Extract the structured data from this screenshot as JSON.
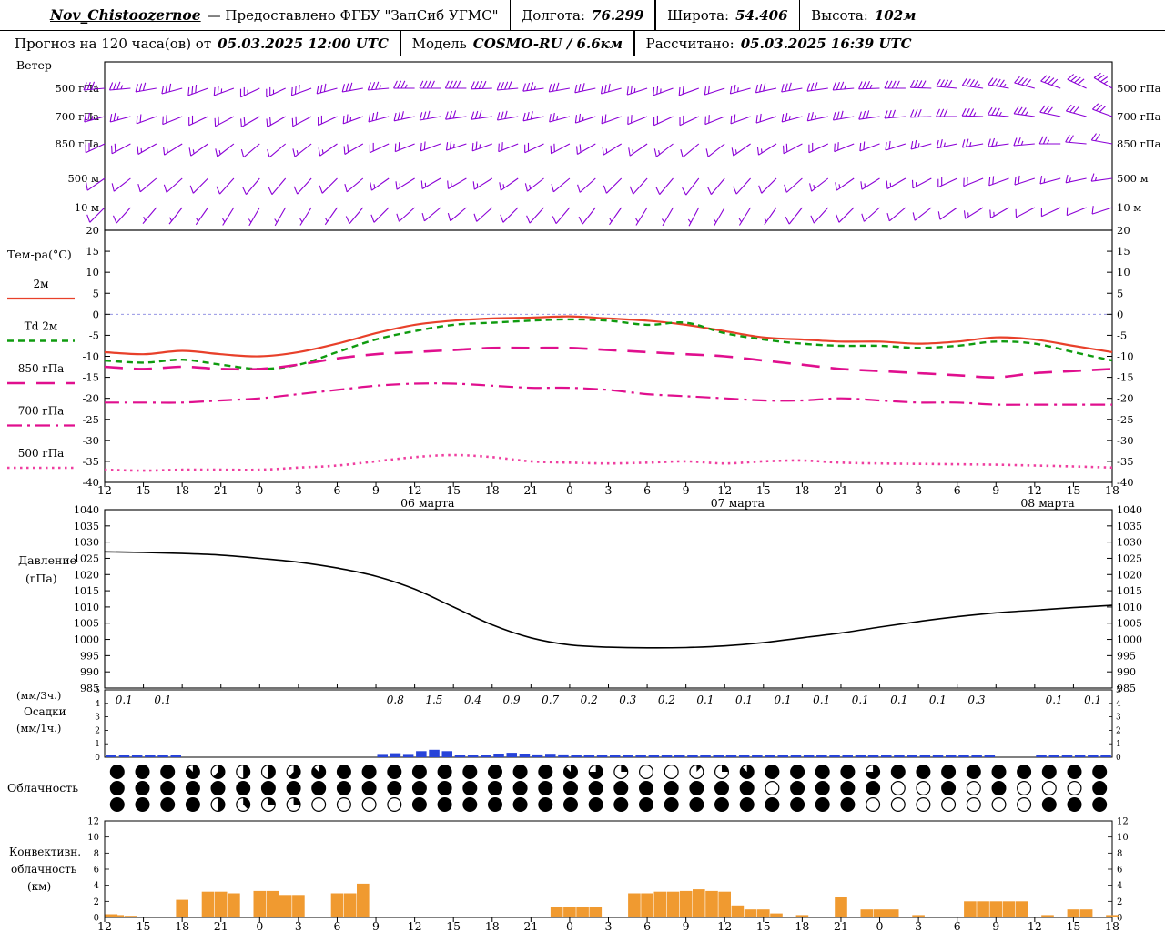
{
  "header": {
    "station": "Nov_Chistoozernoe",
    "provided_by": "— Предоставлено ФГБУ \"ЗапСиб УГМС\"",
    "lon_label": "Долгота:",
    "lon_value": "76.299",
    "lat_label": "Широта:",
    "lat_value": "54.406",
    "alt_label": "Высота:",
    "alt_value": "102м",
    "forecast_label": "Прогноз на 120 часа(ов) от",
    "forecast_time": "05.03.2025 12:00 UTC",
    "model_label": "Модель",
    "model_value": "COSMO-RU / 6.6км",
    "calc_label": "Рассчитано:",
    "calc_value": "05.03.2025 16:39 UTC"
  },
  "side_labels": {
    "wind": "Ветер",
    "temp": "Тем-ра(°C)",
    "pressure1": "Давление",
    "pressure2": "(гПа)",
    "precip1": "(мм/3ч.)",
    "precip2": "Осадки",
    "precip3": "(мм/1ч.)",
    "cloud": "Облачность",
    "conv1": "Конвективн.",
    "conv2": "облачность",
    "conv3": "(км)"
  },
  "axis": {
    "hours_total": 78,
    "hour_step": 3,
    "hour_labels": [
      "12",
      "15",
      "18",
      "21",
      "0",
      "3",
      "6",
      "9",
      "12",
      "15",
      "18",
      "21",
      "0",
      "3",
      "6",
      "9",
      "12",
      "15",
      "18",
      "21",
      "0",
      "3",
      "6",
      "9",
      "12",
      "15",
      "18"
    ],
    "date_labels": [
      {
        "text": "06 марта",
        "t": 25
      },
      {
        "text": "07 марта",
        "t": 49
      },
      {
        "text": "08 марта",
        "t": 73
      }
    ]
  },
  "chart_data": [
    {
      "id": "wind",
      "type": "wind-barbs",
      "title": "Ветер",
      "color": "#8b00d6",
      "time_step_hours": 2,
      "levels": [
        {
          "name": "500 гПа",
          "dir": [
            265,
            265,
            260,
            255,
            250,
            250,
            245,
            245,
            250,
            255,
            260,
            265,
            270,
            270,
            270,
            268,
            265,
            262,
            260,
            258,
            255,
            252,
            250,
            250,
            252,
            255,
            258,
            260,
            262,
            265,
            268,
            270,
            272,
            275,
            278,
            280,
            285,
            290,
            295,
            300
          ],
          "speed": [
            35,
            35,
            30,
            30,
            28,
            25,
            25,
            25,
            28,
            30,
            32,
            35,
            35,
            38,
            40,
            40,
            38,
            35,
            32,
            30,
            28,
            25,
            25,
            22,
            22,
            25,
            28,
            30,
            32,
            35,
            35,
            38,
            40,
            42,
            45,
            45,
            42,
            40,
            38,
            35
          ]
        },
        {
          "name": "700 гПа",
          "dir": [
            255,
            255,
            250,
            248,
            245,
            242,
            240,
            240,
            242,
            245,
            250,
            255,
            258,
            260,
            262,
            262,
            260,
            258,
            255,
            252,
            250,
            248,
            245,
            245,
            248,
            250,
            252,
            255,
            258,
            260,
            262,
            265,
            268,
            270,
            272,
            275,
            278,
            282,
            285,
            290
          ],
          "speed": [
            25,
            25,
            22,
            22,
            20,
            20,
            18,
            18,
            20,
            22,
            25,
            28,
            28,
            30,
            30,
            32,
            30,
            28,
            26,
            25,
            22,
            20,
            20,
            18,
            18,
            20,
            22,
            25,
            26,
            28,
            28,
            30,
            30,
            32,
            34,
            35,
            34,
            32,
            30,
            28
          ]
        },
        {
          "name": "850 гПа",
          "dir": [
            245,
            242,
            240,
            238,
            235,
            232,
            230,
            230,
            232,
            235,
            240,
            245,
            248,
            250,
            252,
            250,
            248,
            245,
            242,
            240,
            238,
            235,
            232,
            230,
            232,
            235,
            238,
            242,
            245,
            248,
            250,
            252,
            255,
            258,
            260,
            262,
            265,
            270,
            275,
            280
          ],
          "speed": [
            18,
            18,
            16,
            15,
            15,
            14,
            12,
            12,
            14,
            15,
            18,
            20,
            22,
            22,
            24,
            24,
            22,
            20,
            18,
            18,
            16,
            15,
            14,
            12,
            12,
            14,
            16,
            18,
            20,
            20,
            22,
            22,
            24,
            25,
            26,
            26,
            25,
            24,
            22,
            20
          ]
        },
        {
          "name": "500 м",
          "dir": [
            235,
            232,
            230,
            228,
            225,
            222,
            220,
            220,
            222,
            225,
            230,
            235,
            238,
            240,
            240,
            238,
            235,
            232,
            230,
            228,
            225,
            222,
            220,
            218,
            220,
            222,
            225,
            228,
            232,
            235,
            238,
            240,
            242,
            245,
            248,
            250,
            252,
            255,
            258,
            262
          ],
          "speed": [
            12,
            12,
            10,
            10,
            10,
            9,
            8,
            8,
            10,
            10,
            12,
            14,
            15,
            15,
            16,
            16,
            15,
            14,
            12,
            12,
            10,
            10,
            9,
            8,
            8,
            10,
            10,
            12,
            14,
            14,
            15,
            15,
            16,
            18,
            18,
            20,
            18,
            16,
            15,
            14
          ]
        },
        {
          "name": "10 м",
          "dir": [
            225,
            222,
            220,
            218,
            215,
            212,
            210,
            210,
            212,
            215,
            220,
            225,
            228,
            230,
            230,
            228,
            225,
            222,
            220,
            218,
            215,
            212,
            210,
            208,
            210,
            212,
            215,
            218,
            222,
            225,
            228,
            230,
            232,
            235,
            238,
            240,
            242,
            245,
            248,
            252
          ],
          "speed": [
            8,
            8,
            6,
            6,
            5,
            5,
            5,
            5,
            6,
            6,
            8,
            10,
            10,
            10,
            12,
            12,
            10,
            10,
            8,
            8,
            6,
            6,
            5,
            5,
            5,
            6,
            6,
            8,
            10,
            10,
            10,
            12,
            12,
            12,
            14,
            14,
            12,
            12,
            10,
            10
          ]
        }
      ]
    },
    {
      "id": "temperature",
      "type": "line",
      "ylabel": "Тем-ра(°C)",
      "ylim": [
        -40,
        20
      ],
      "yticks": [
        20,
        15,
        10,
        5,
        0,
        -5,
        -10,
        -15,
        -20,
        -25,
        -30,
        -35,
        -40
      ],
      "time_step_hours": 3,
      "series": [
        {
          "name": "2м",
          "color": "#e8402a",
          "dash": "solid",
          "width": 2.2,
          "values": [
            -9,
            -9.5,
            -8.7,
            -9.5,
            -10,
            -9,
            -7,
            -4.5,
            -2.5,
            -1.5,
            -1,
            -0.8,
            -0.5,
            -1,
            -1.5,
            -2.5,
            -4,
            -5.5,
            -6,
            -6.5,
            -6.5,
            -7,
            -6.5,
            -5.5,
            -6,
            -7.5,
            -9
          ]
        },
        {
          "name": "Td 2м",
          "color": "#0f9b0f",
          "dash": "dashed",
          "width": 2.4,
          "values": [
            -11,
            -11.5,
            -10.8,
            -12,
            -13,
            -12,
            -9,
            -6,
            -4,
            -2.5,
            -2,
            -1.5,
            -1.2,
            -1.5,
            -2.5,
            -2,
            -4.5,
            -6,
            -7,
            -7.5,
            -7.5,
            -8,
            -7.5,
            -6.5,
            -7,
            -9,
            -11
          ]
        },
        {
          "name": "850 гПа",
          "color": "#e00f8e",
          "dash": "longdash",
          "width": 2.6,
          "values": [
            -12.5,
            -13,
            -12.5,
            -13,
            -13,
            -12,
            -10.5,
            -9.5,
            -9,
            -8.5,
            -8,
            -8,
            -8,
            -8.5,
            -9,
            -9.5,
            -10,
            -11,
            -12,
            -13,
            -13.5,
            -14,
            -14.5,
            -15,
            -14,
            -13.5,
            -13
          ]
        },
        {
          "name": "700 гПа",
          "color": "#e00f8e",
          "dash": "dashdot",
          "width": 2.2,
          "values": [
            -21,
            -21,
            -21,
            -20.5,
            -20,
            -19,
            -18,
            -17,
            -16.5,
            -16.5,
            -17,
            -17.5,
            -17.5,
            -18,
            -19,
            -19.5,
            -20,
            -20.5,
            -20.5,
            -20,
            -20.5,
            -21,
            -21,
            -21.5,
            -21.5,
            -21.5,
            -21.5
          ]
        },
        {
          "name": "500 гПа",
          "color": "#ef3fa0",
          "dash": "dotted",
          "width": 2.6,
          "values": [
            -37,
            -37.2,
            -37,
            -37,
            -37,
            -36.5,
            -36,
            -35,
            -34,
            -33.5,
            -34,
            -35,
            -35.3,
            -35.5,
            -35.3,
            -35,
            -35.5,
            -35,
            -34.8,
            -35.3,
            -35.5,
            -35.6,
            -35.7,
            -35.8,
            -36,
            -36.2,
            -36.5
          ]
        }
      ]
    },
    {
      "id": "pressure",
      "type": "line",
      "ylabel": "Давление (гПа)",
      "ylim": [
        985,
        1040
      ],
      "yticks": [
        1040,
        1035,
        1030,
        1025,
        1020,
        1015,
        1010,
        1005,
        1000,
        995,
        990,
        985
      ],
      "time_step_hours": 3,
      "series": [
        {
          "name": "Давление",
          "color": "#000000",
          "dash": "solid",
          "width": 1.6,
          "values": [
            1027,
            1026.8,
            1026.5,
            1026,
            1025,
            1023.8,
            1022,
            1019.5,
            1015.5,
            1010,
            1004.5,
            1000.5,
            998.3,
            997.6,
            997.4,
            997.5,
            998,
            999,
            1000.5,
            1002,
            1003.8,
            1005.5,
            1007,
            1008.2,
            1009,
            1009.8,
            1010.5
          ]
        }
      ]
    },
    {
      "id": "precipitation",
      "type": "bar",
      "ylabel": "Осадки (мм/3ч., мм/1ч.)",
      "ylim": [
        0,
        5
      ],
      "yticks": [
        5,
        4,
        3,
        2,
        1,
        0
      ],
      "bin_hours": 3,
      "color": "#2743d9",
      "values_3h": [
        0.1,
        0.1,
        0,
        0,
        0,
        0,
        0,
        0.8,
        1.5,
        0.4,
        0.9,
        0.7,
        0.2,
        0.3,
        0.2,
        0.1,
        0.1,
        0.1,
        0.1,
        0.1,
        0.1,
        0.1,
        0.3,
        0,
        0.1,
        0.1
      ]
    },
    {
      "id": "cloudiness",
      "type": "symbol-rows",
      "symbol": "circle-okta",
      "rows": [
        [
          8,
          8,
          8,
          7,
          5,
          4,
          4,
          5,
          7,
          8,
          8,
          8,
          8,
          8,
          8,
          8,
          8,
          8,
          7,
          6,
          2,
          0,
          0,
          1,
          2,
          7,
          8,
          8,
          8,
          8,
          6,
          8,
          8,
          8,
          8,
          8,
          8,
          8,
          8,
          8
        ],
        [
          8,
          8,
          8,
          8,
          8,
          8,
          8,
          8,
          8,
          8,
          8,
          8,
          8,
          8,
          8,
          8,
          8,
          8,
          8,
          8,
          8,
          8,
          8,
          8,
          8,
          8,
          0,
          8,
          8,
          8,
          8,
          0,
          0,
          8,
          0,
          8,
          0,
          0,
          0,
          8
        ],
        [
          8,
          8,
          8,
          8,
          4,
          3,
          2,
          2,
          0,
          0,
          0,
          0,
          8,
          8,
          8,
          8,
          8,
          8,
          8,
          8,
          8,
          8,
          8,
          8,
          8,
          8,
          8,
          8,
          8,
          8,
          0,
          0,
          0,
          0,
          0,
          0,
          0,
          8,
          8,
          8
        ]
      ]
    },
    {
      "id": "convective",
      "type": "bar",
      "ylabel": "Конвективн. облачность (км)",
      "ylim": [
        0,
        12
      ],
      "yticks": [
        12,
        10,
        8,
        6,
        4,
        2,
        0
      ],
      "bin_hours": 1,
      "color": "#f09a30",
      "values_km": [
        0.4,
        0.3,
        0.2,
        0,
        0,
        0,
        2.2,
        0,
        3.2,
        3.2,
        3.0,
        0,
        3.3,
        3.3,
        2.8,
        2.8,
        0,
        0,
        3.0,
        3.0,
        4.2,
        0,
        0,
        0,
        0,
        0,
        0,
        0,
        0,
        0,
        0,
        0,
        0,
        0,
        0,
        1.3,
        1.3,
        1.3,
        1.3,
        0,
        0,
        3.0,
        3.0,
        3.2,
        3.2,
        3.3,
        3.5,
        3.3,
        3.2,
        1.5,
        1.0,
        1.0,
        0.5,
        0,
        0.3,
        0,
        0,
        2.6,
        0,
        1.0,
        1.0,
        1.0,
        0,
        0.3,
        0,
        0,
        0,
        2.0,
        2.0,
        2.0,
        2.0,
        2.0,
        0,
        0.3,
        0,
        1.0,
        1.0,
        0,
        0.3
      ]
    }
  ]
}
